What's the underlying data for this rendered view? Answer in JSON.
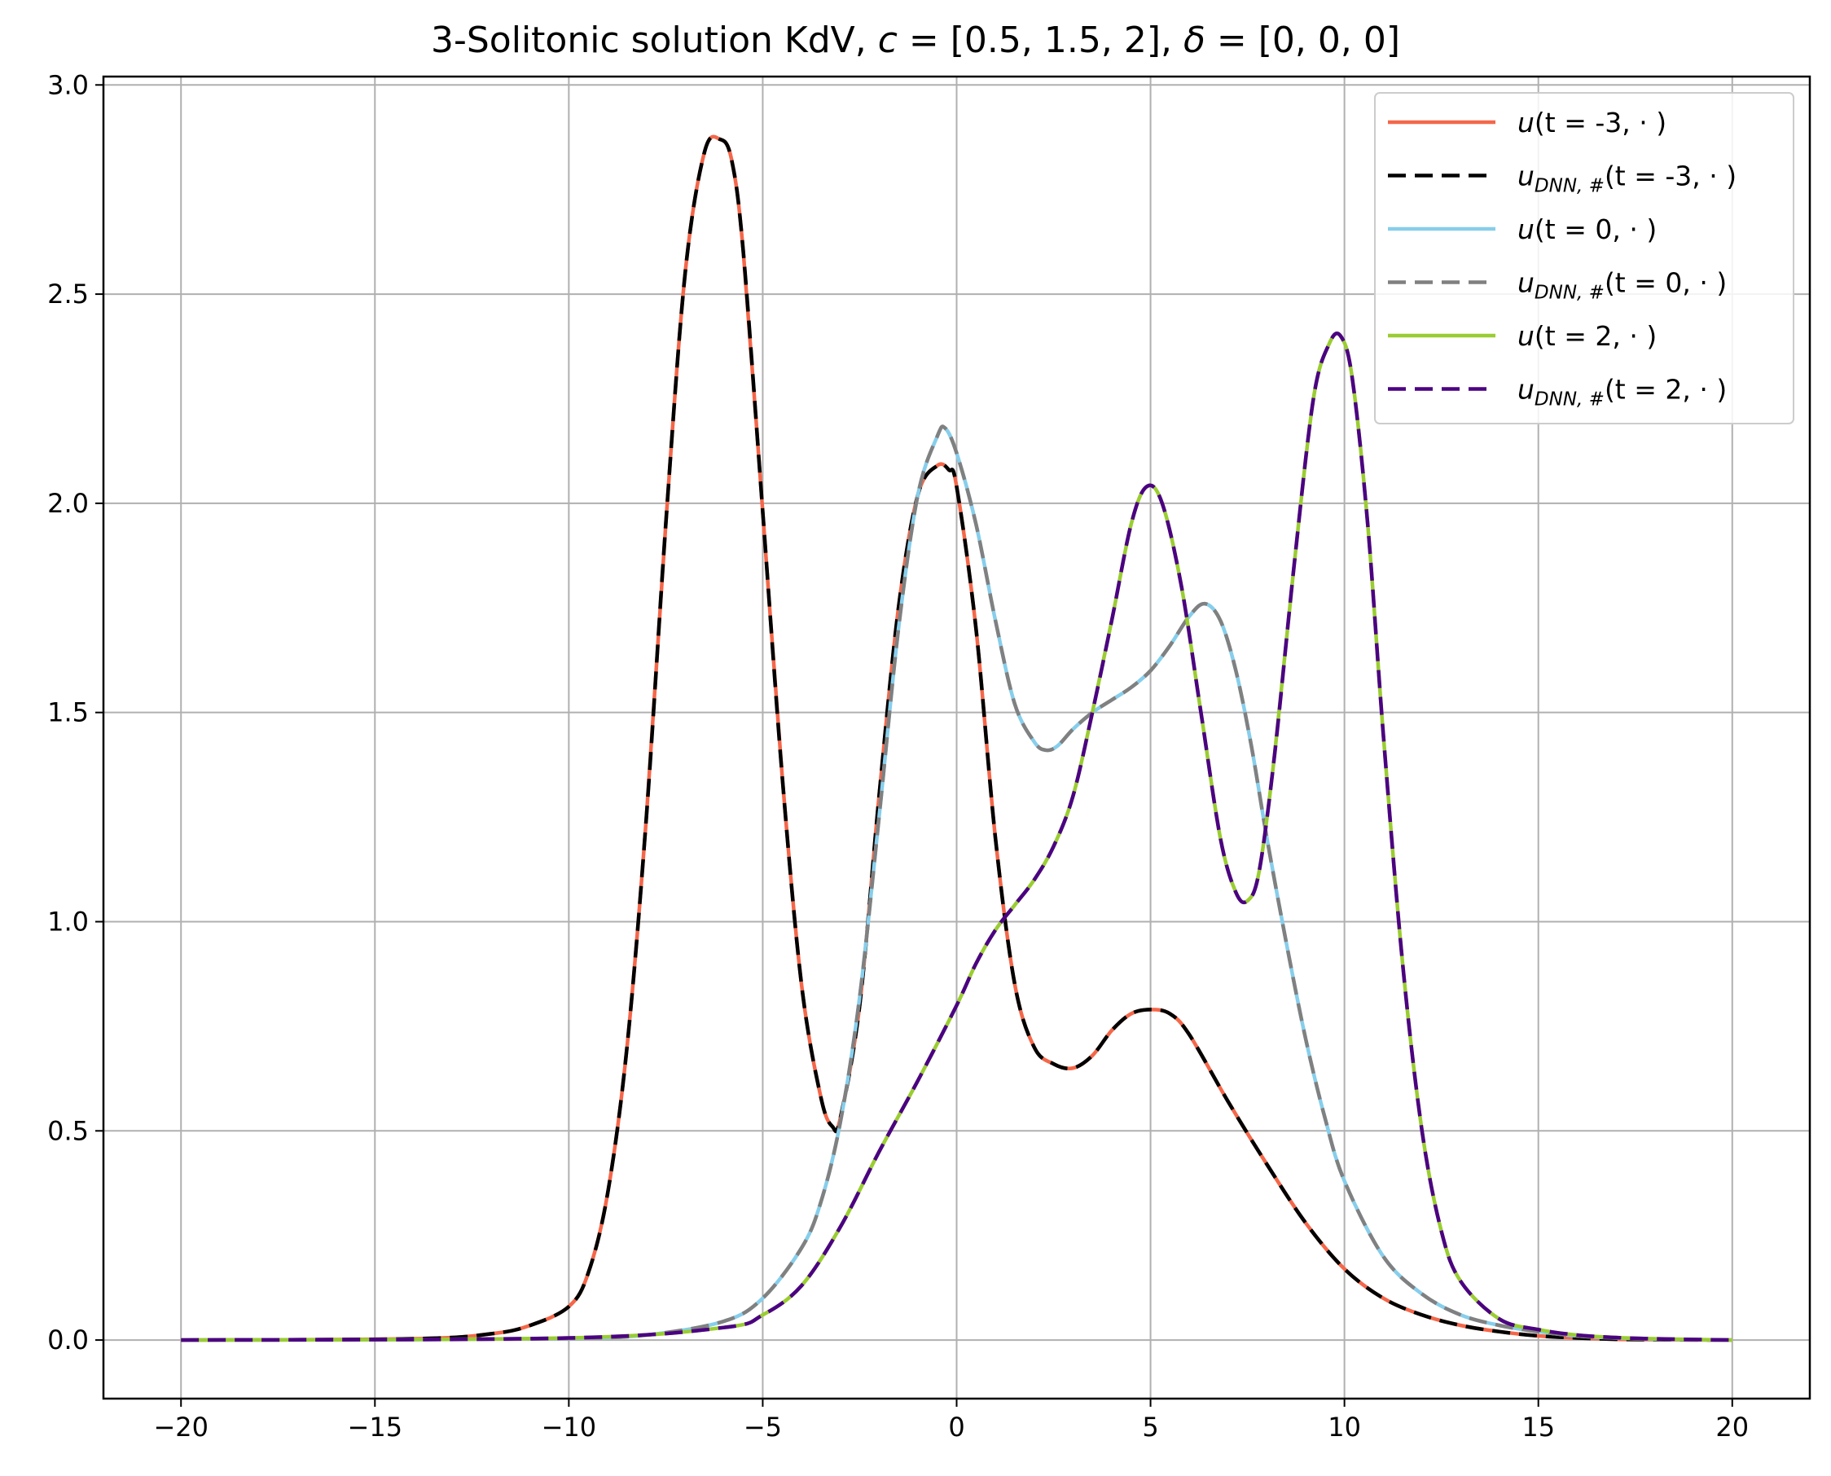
{
  "chart_data": {
    "type": "line",
    "title": {
      "prefix": "3-Solitonic solution KdV, ",
      "c_symbol": "c",
      "c_values": " =  [0.5, 1.5, 2], ",
      "delta_symbol": "δ",
      "delta_values": " =  [0, 0, 0]"
    },
    "xlabel": "",
    "ylabel": "",
    "xlim": [
      -22,
      22
    ],
    "ylim": [
      -0.14,
      3.02
    ],
    "xticks": [
      -20,
      -15,
      -10,
      -5,
      0,
      5,
      10,
      15,
      20
    ],
    "xtick_labels": [
      "−20",
      "−15",
      "−10",
      "−5",
      "0",
      "5",
      "10",
      "15",
      "20"
    ],
    "yticks": [
      0.0,
      0.5,
      1.0,
      1.5,
      2.0,
      2.5,
      3.0
    ],
    "ytick_labels": [
      "0.0",
      "0.5",
      "1.0",
      "1.5",
      "2.0",
      "2.5",
      "3.0"
    ],
    "grid": true,
    "legend_position": "top-right",
    "series": [
      {
        "name": "u(t = -3, ·)",
        "legend": {
          "main": "u",
          "sub": "",
          "args": "(t = -3, · )"
        },
        "color": "#f4674a",
        "style": "solid",
        "x": [
          -20,
          -14,
          -12,
          -11,
          -10,
          -9.5,
          -9,
          -8.5,
          -8,
          -7.5,
          -7,
          -6.5,
          -6.1,
          -5.8,
          -5.5,
          -5,
          -4.5,
          -4,
          -3.5,
          -3.2,
          -3,
          -2.5,
          -2,
          -1.5,
          -1,
          -0.5,
          -0.2,
          0,
          0.5,
          1,
          1.5,
          2,
          2.5,
          3,
          3.5,
          4,
          4.5,
          5,
          5.5,
          6,
          7,
          8,
          9,
          10,
          11,
          12,
          13,
          14,
          15,
          16,
          17,
          18,
          20
        ],
        "y": [
          0,
          0.003,
          0.015,
          0.035,
          0.08,
          0.16,
          0.35,
          0.7,
          1.25,
          1.95,
          2.55,
          2.84,
          2.87,
          2.82,
          2.6,
          1.98,
          1.35,
          0.85,
          0.58,
          0.51,
          0.53,
          0.8,
          1.3,
          1.75,
          2.02,
          2.09,
          2.08,
          2.04,
          1.7,
          1.2,
          0.85,
          0.7,
          0.66,
          0.65,
          0.68,
          0.74,
          0.78,
          0.79,
          0.78,
          0.73,
          0.57,
          0.42,
          0.28,
          0.17,
          0.1,
          0.06,
          0.035,
          0.02,
          0.01,
          0.005,
          0.002,
          0.001,
          0
        ]
      },
      {
        "name": "u_{DNN,#}(t = -3, ·)",
        "legend": {
          "main": "u",
          "sub": "DNN, #",
          "args": "(t = -3, · )"
        },
        "color": "#000000",
        "style": "dashed",
        "same_as": 0
      },
      {
        "name": "u(t = 0, ·)",
        "legend": {
          "main": "u",
          "sub": "",
          "args": "(t = 0, · )"
        },
        "color": "#87ceeb",
        "style": "solid",
        "x": [
          -20,
          -14,
          -10,
          -8,
          -6,
          -5,
          -4,
          -3.5,
          -3,
          -2.5,
          -2,
          -1.5,
          -1,
          -0.5,
          -0.3,
          0,
          0.5,
          1,
          1.5,
          2,
          2.3,
          2.6,
          3,
          3.5,
          4,
          4.5,
          5,
          5.5,
          6,
          6.4,
          6.8,
          7.2,
          7.6,
          8,
          8.5,
          9,
          9.5,
          10,
          11,
          12,
          13,
          14,
          15,
          16,
          17,
          18,
          20
        ],
        "y": [
          0,
          0.001,
          0.004,
          0.012,
          0.045,
          0.1,
          0.22,
          0.33,
          0.52,
          0.82,
          1.25,
          1.7,
          2.02,
          2.16,
          2.18,
          2.12,
          1.95,
          1.72,
          1.52,
          1.43,
          1.41,
          1.42,
          1.46,
          1.5,
          1.53,
          1.56,
          1.6,
          1.66,
          1.73,
          1.76,
          1.72,
          1.6,
          1.42,
          1.2,
          0.95,
          0.72,
          0.53,
          0.38,
          0.2,
          0.11,
          0.06,
          0.035,
          0.02,
          0.01,
          0.005,
          0.002,
          0
        ]
      },
      {
        "name": "u_{DNN,#}(t = 0, ·)",
        "legend": {
          "main": "u",
          "sub": "DNN, #",
          "args": "(t = 0, · )"
        },
        "color": "#808080",
        "style": "dashed",
        "same_as": 2
      },
      {
        "name": "u(t = 2, ·)",
        "legend": {
          "main": "u",
          "sub": "",
          "args": "(t = 2, · )"
        },
        "color": "#9acd32",
        "style": "solid",
        "x": [
          -20,
          -10,
          -6,
          -5,
          -4,
          -3,
          -2,
          -1,
          0,
          0.5,
          1,
          1.5,
          2,
          2.5,
          3,
          3.5,
          4,
          4.5,
          4.9,
          5.3,
          5.8,
          6.3,
          6.8,
          7.2,
          7.5,
          7.8,
          8.2,
          8.7,
          9.2,
          9.6,
          9.9,
          10.2,
          10.6,
          11,
          11.5,
          12,
          12.5,
          13,
          14,
          15,
          16,
          17,
          18,
          20
        ],
        "y": [
          0,
          0.005,
          0.03,
          0.06,
          0.13,
          0.27,
          0.45,
          0.62,
          0.8,
          0.9,
          0.98,
          1.04,
          1.1,
          1.18,
          1.3,
          1.5,
          1.72,
          1.95,
          2.04,
          2.0,
          1.8,
          1.5,
          1.2,
          1.07,
          1.05,
          1.12,
          1.4,
          1.85,
          2.25,
          2.38,
          2.4,
          2.3,
          1.95,
          1.45,
          0.9,
          0.5,
          0.26,
          0.14,
          0.05,
          0.025,
          0.012,
          0.006,
          0.003,
          0
        ]
      },
      {
        "name": "u_{DNN,#}(t = 2, ·)",
        "legend": {
          "main": "u",
          "sub": "DNN, #",
          "args": "(t = 2, · )"
        },
        "color": "#4b0082",
        "style": "dashed",
        "same_as": 4
      }
    ]
  }
}
